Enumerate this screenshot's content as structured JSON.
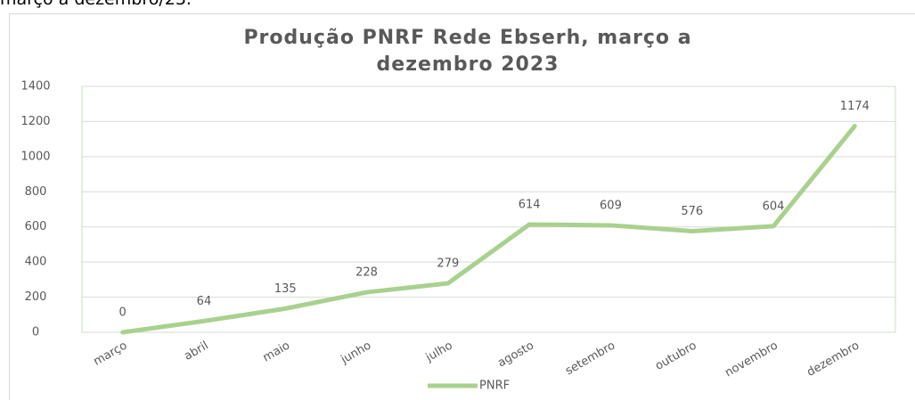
{
  "caption": "março a dezembro/23.",
  "chart_data": {
    "type": "line",
    "title": "Produção  PNRF Rede Ebserh, março a dezembro 2023",
    "categories": [
      "março",
      "abril",
      "maio",
      "junho",
      "julho",
      "agosto",
      "setembro",
      "outubro",
      "novembro",
      "dezembro"
    ],
    "series": [
      {
        "name": "PNRF",
        "color": "#a9d18e",
        "values": [
          0,
          64,
          135,
          228,
          279,
          614,
          609,
          576,
          604,
          1174
        ]
      }
    ],
    "ylim": [
      0,
      1400
    ],
    "yticks": [
      0,
      200,
      400,
      600,
      800,
      1000,
      1200,
      1400
    ],
    "grid": true,
    "legend": "bottom"
  }
}
